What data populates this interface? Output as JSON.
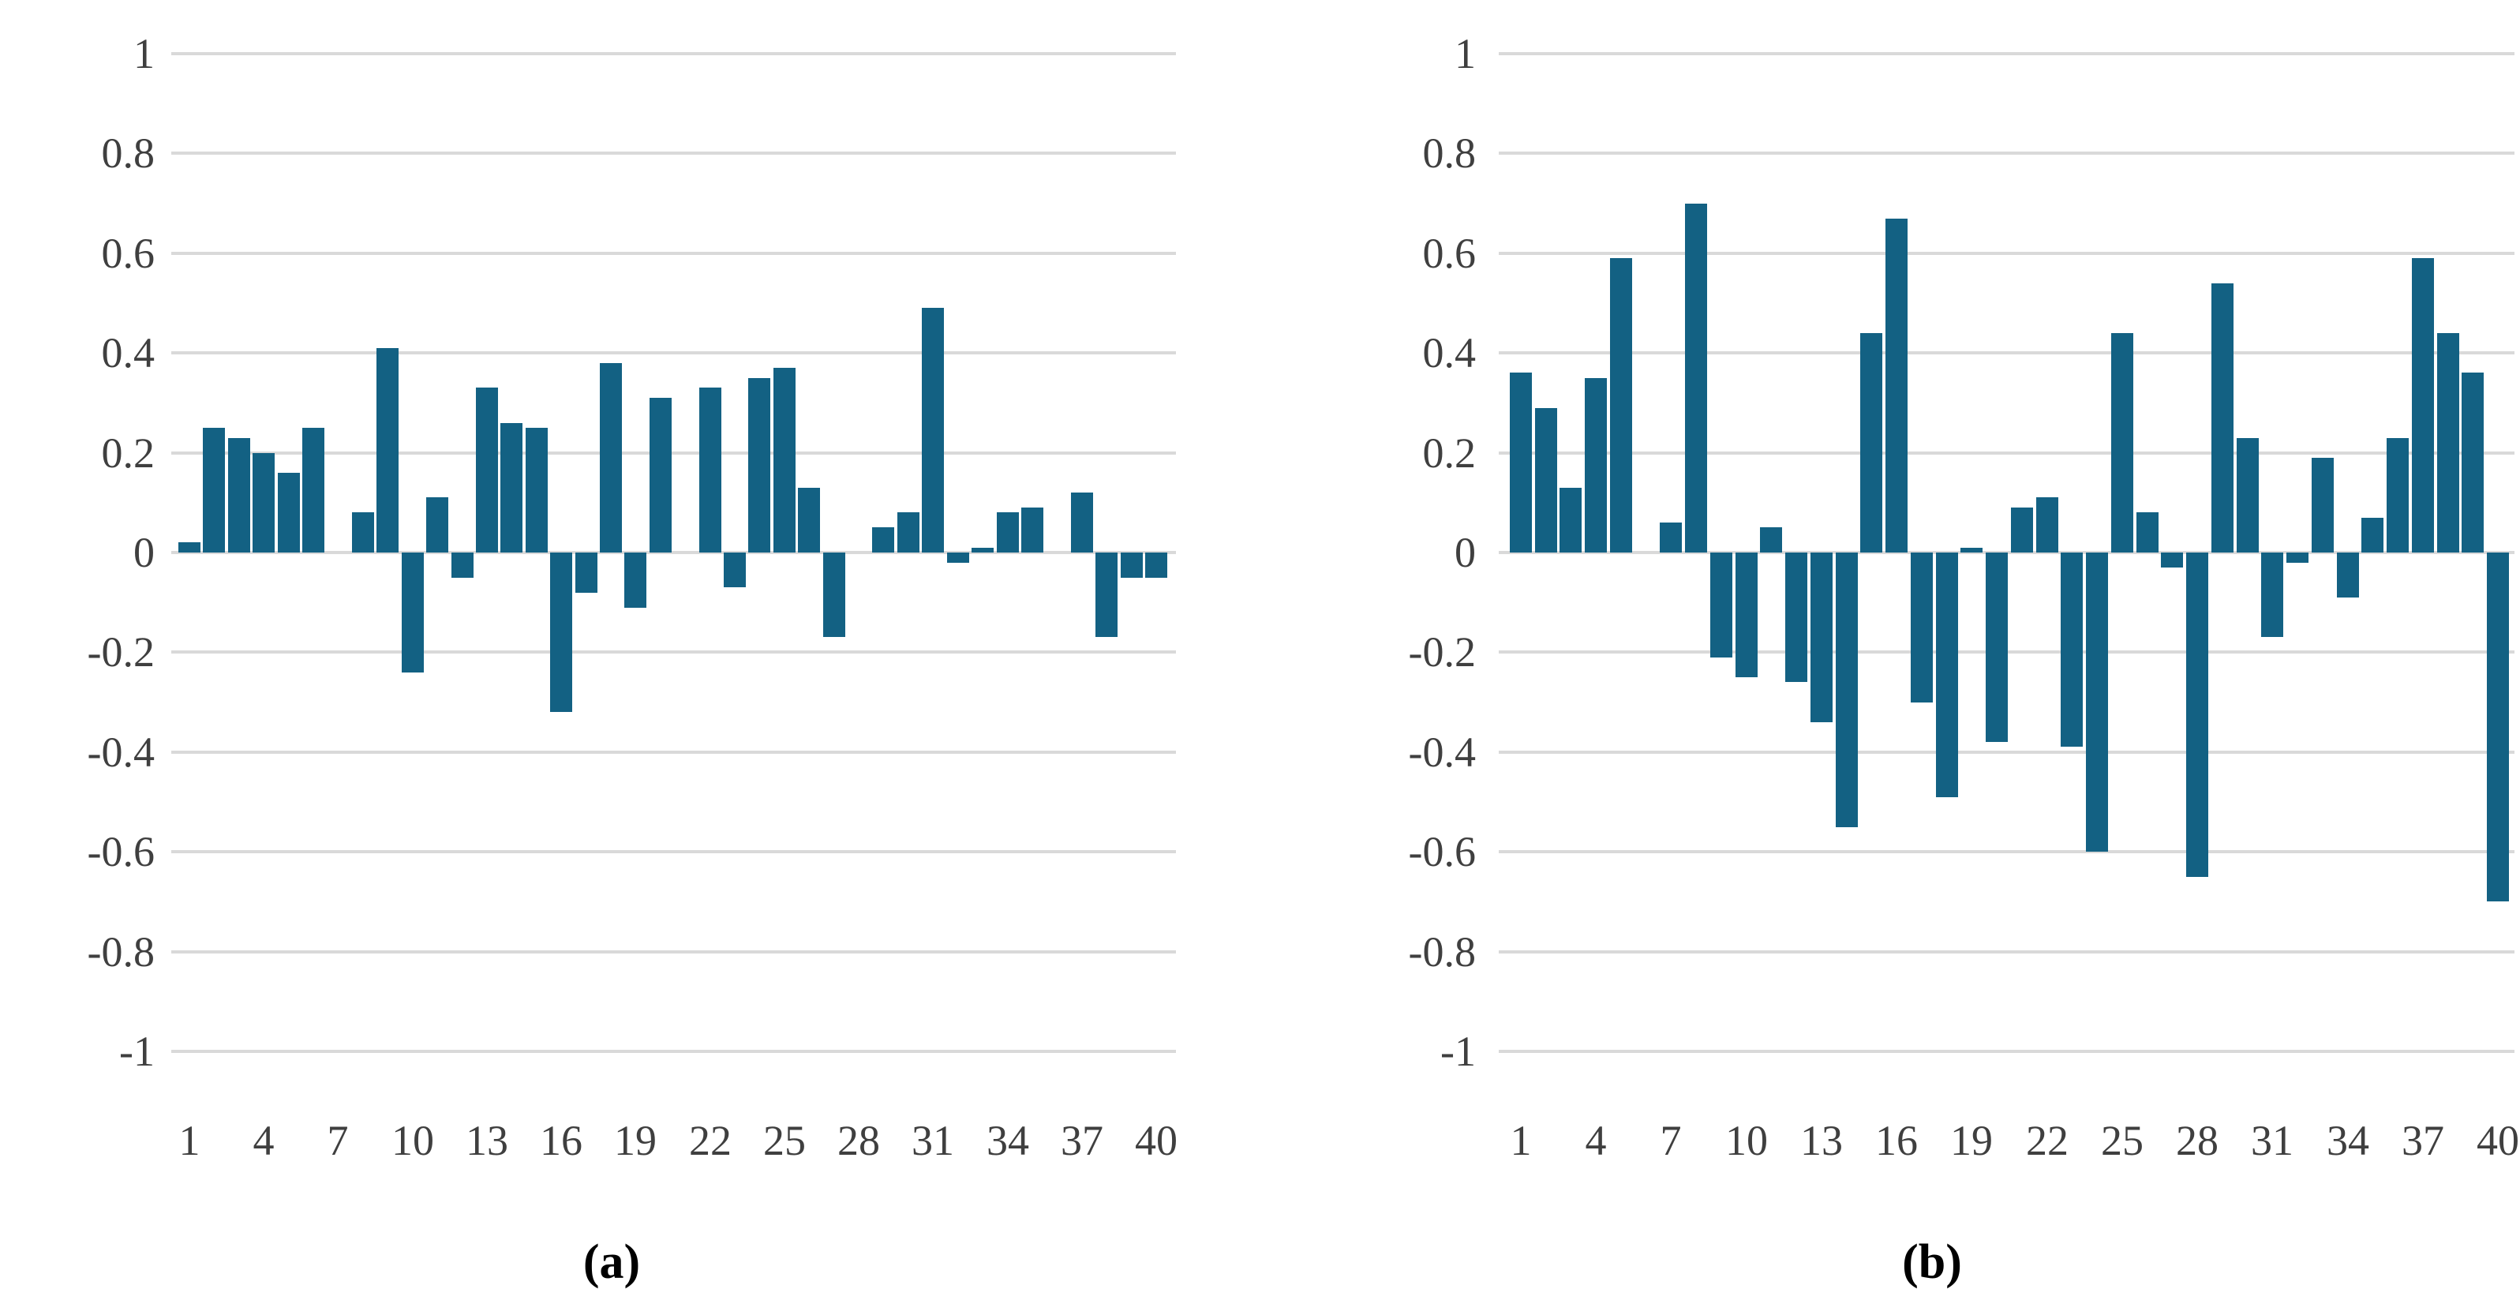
{
  "figure": {
    "background": "#ffffff",
    "bar_color": "#136183",
    "gridline_color": "#d9d9d9",
    "tick_label_color": "#3f3f3f",
    "panel_label_color": "#000000"
  },
  "chart_data": [
    {
      "type": "bar",
      "panel_label": "(a)",
      "title": "",
      "xlabel": "",
      "ylabel": "",
      "ylim": [
        -1,
        1
      ],
      "grid": true,
      "y_ticks": [
        "1",
        "0.8",
        "0.6",
        "0.4",
        "0.2",
        "0",
        "-0.2",
        "-0.4",
        "-0.6",
        "-0.8",
        "-1"
      ],
      "y_tick_values": [
        1,
        0.8,
        0.6,
        0.4,
        0.2,
        0,
        -0.2,
        -0.4,
        -0.6,
        -0.8,
        -1
      ],
      "x_tick_labels": [
        "1",
        "4",
        "7",
        "10",
        "13",
        "16",
        "19",
        "22",
        "25",
        "28",
        "31",
        "34",
        "37",
        "40"
      ],
      "x_tick_positions": [
        1,
        4,
        7,
        10,
        13,
        16,
        19,
        22,
        25,
        28,
        31,
        34,
        37,
        40
      ],
      "categories": [
        1,
        2,
        3,
        4,
        5,
        6,
        7,
        8,
        9,
        10,
        11,
        12,
        13,
        14,
        15,
        16,
        17,
        18,
        19,
        20,
        21,
        22,
        23,
        24,
        25,
        26,
        27,
        28,
        29,
        30,
        31,
        32,
        33,
        34,
        35,
        36,
        37,
        38,
        39,
        40
      ],
      "values": [
        0.02,
        0.25,
        0.23,
        0.2,
        0.16,
        0.25,
        0.0,
        0.08,
        0.41,
        -0.24,
        0.11,
        -0.05,
        0.33,
        0.26,
        0.25,
        -0.32,
        -0.08,
        0.38,
        -0.11,
        0.31,
        0.0,
        0.33,
        -0.07,
        0.35,
        0.37,
        0.13,
        -0.17,
        0.0,
        0.05,
        0.08,
        0.49,
        -0.02,
        0.01,
        0.08,
        0.09,
        0.0,
        0.12,
        -0.17,
        -0.05,
        -0.05
      ]
    },
    {
      "type": "bar",
      "panel_label": "(b)",
      "title": "",
      "xlabel": "",
      "ylabel": "",
      "ylim": [
        -1,
        1
      ],
      "grid": true,
      "y_ticks": [
        "1",
        "0.8",
        "0.6",
        "0.4",
        "0.2",
        "0",
        "-0.2",
        "-0.4",
        "-0.6",
        "-0.8",
        "-1"
      ],
      "y_tick_values": [
        1,
        0.8,
        0.6,
        0.4,
        0.2,
        0,
        -0.2,
        -0.4,
        -0.6,
        -0.8,
        -1
      ],
      "x_tick_labels": [
        "1",
        "4",
        "7",
        "10",
        "13",
        "16",
        "19",
        "22",
        "25",
        "28",
        "31",
        "34",
        "37",
        "40"
      ],
      "x_tick_positions": [
        1,
        4,
        7,
        10,
        13,
        16,
        19,
        22,
        25,
        28,
        31,
        34,
        37,
        40
      ],
      "categories": [
        1,
        2,
        3,
        4,
        5,
        6,
        7,
        8,
        9,
        10,
        11,
        12,
        13,
        14,
        15,
        16,
        17,
        18,
        19,
        20,
        21,
        22,
        23,
        24,
        25,
        26,
        27,
        28,
        29,
        30,
        31,
        32,
        33,
        34,
        35,
        36,
        37,
        38,
        39,
        40
      ],
      "values": [
        0.36,
        0.29,
        0.13,
        0.35,
        0.59,
        0.0,
        0.06,
        0.7,
        -0.21,
        -0.25,
        0.05,
        -0.26,
        -0.34,
        -0.55,
        0.44,
        0.67,
        -0.3,
        -0.49,
        0.01,
        -0.38,
        0.09,
        0.11,
        -0.39,
        -0.6,
        0.44,
        0.08,
        -0.03,
        -0.65,
        0.54,
        0.23,
        -0.17,
        -0.02,
        0.19,
        -0.09,
        0.07,
        0.23,
        0.59,
        0.44,
        0.36,
        -0.7
      ]
    }
  ]
}
